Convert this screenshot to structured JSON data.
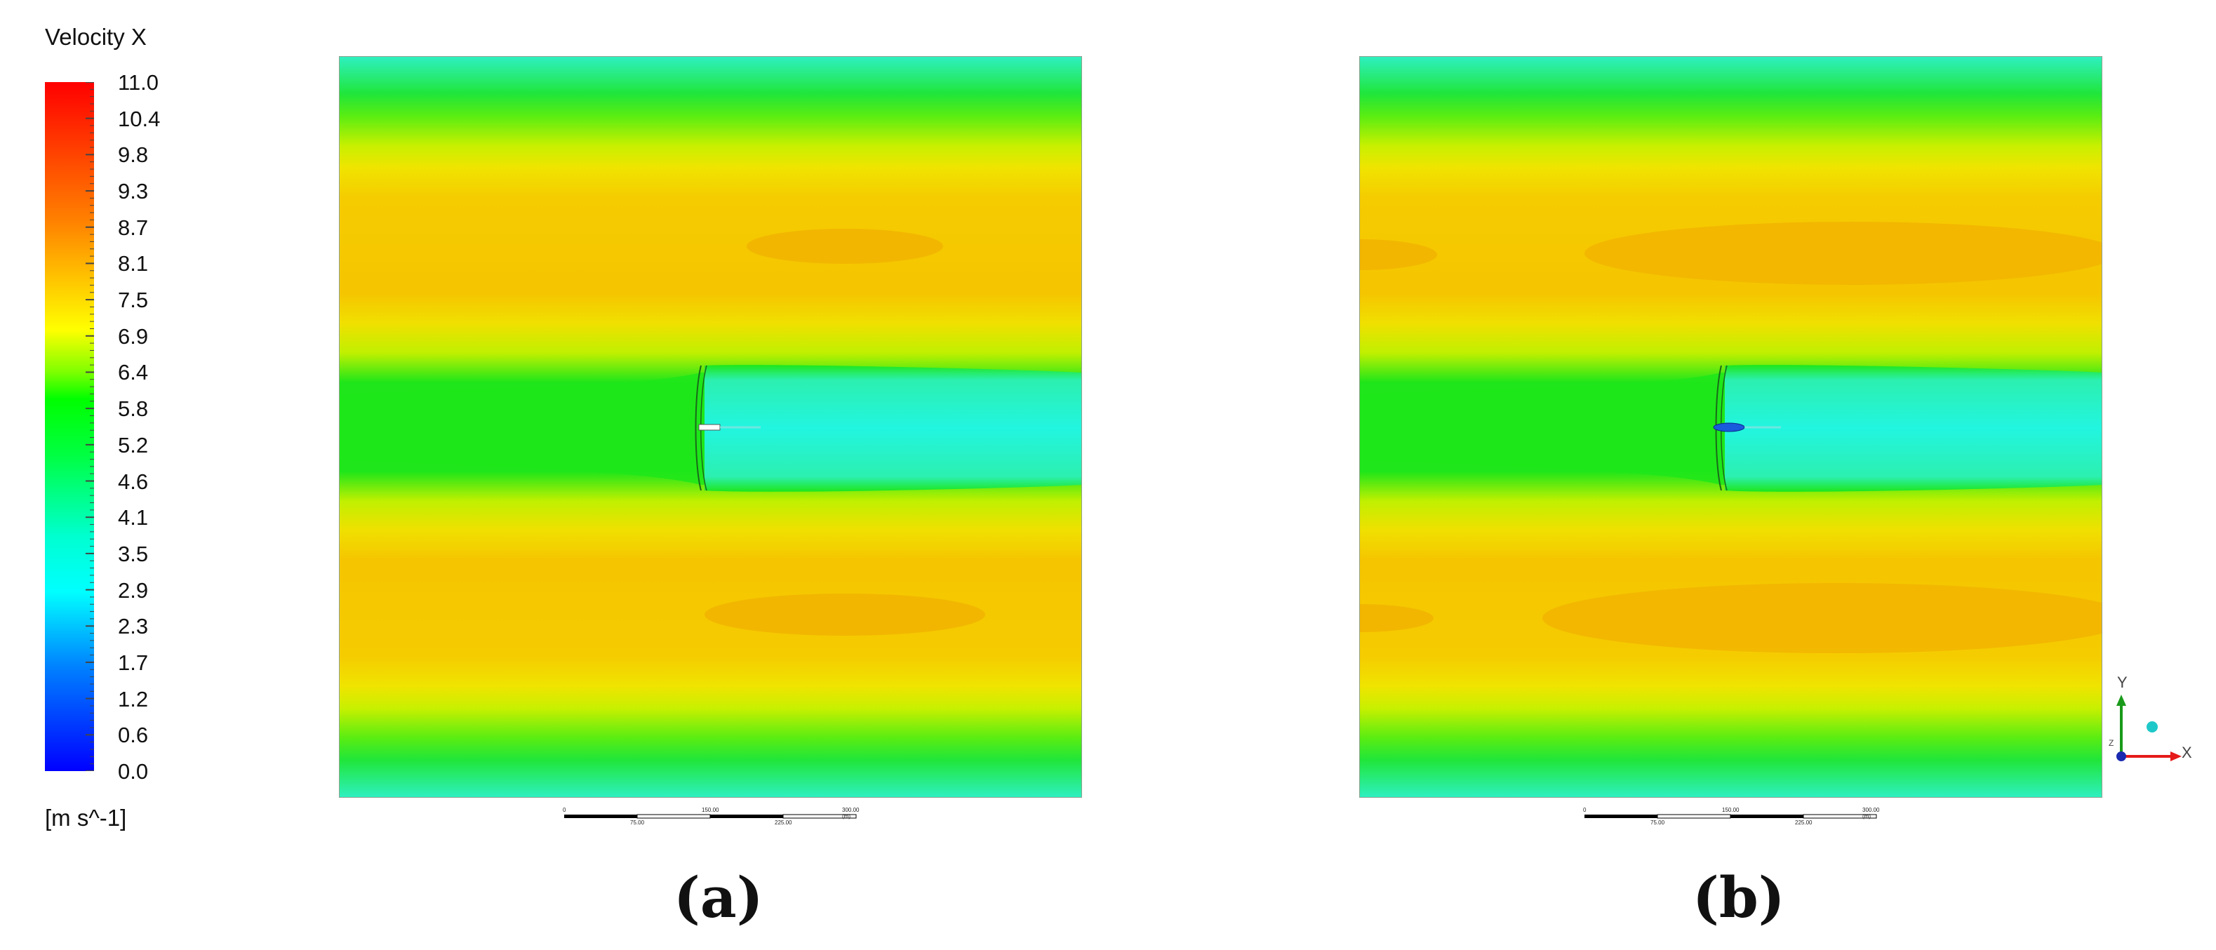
{
  "legend": {
    "title": "Velocity X",
    "units": "[m s^-1]",
    "ticks": [
      "11.0",
      "10.4",
      "9.8",
      "9.3",
      "8.7",
      "8.1",
      "7.5",
      "6.9",
      "6.4",
      "5.8",
      "5.2",
      "4.6",
      "4.1",
      "3.5",
      "2.9",
      "2.3",
      "1.7",
      "1.2",
      "0.6",
      "0.0"
    ],
    "min": 0.0,
    "max": 11.0
  },
  "scalebar": {
    "top_labels": [
      "0",
      "150.00",
      "300.00 (m)"
    ],
    "bottom_labels": [
      "75.00",
      "225.00"
    ]
  },
  "panels": [
    {
      "caption": "(a)",
      "hub_marker": "white-nacelle"
    },
    {
      "caption": "(b)",
      "hub_marker": "blue-nacelle"
    }
  ],
  "axis": {
    "y_label": "Y",
    "x_label": "X",
    "z_label": "Z"
  },
  "colors": {
    "cyan": "#1ce6c8",
    "green": "#1ae61a",
    "yellow_green": "#c8f000",
    "yellow": "#f0e400",
    "amber": "#f5c800",
    "orange": "#f2b400"
  }
}
